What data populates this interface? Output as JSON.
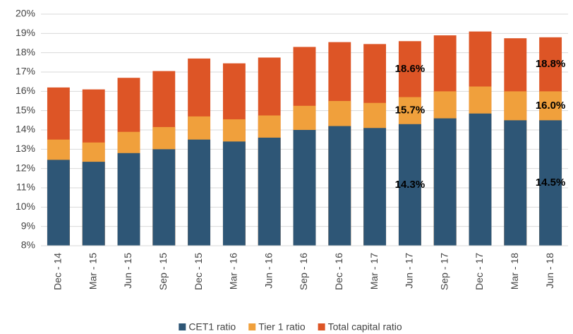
{
  "chart_data": {
    "type": "bar",
    "categories": [
      "Dec - 14",
      "Mar - 15",
      "Jun - 15",
      "Sep - 15",
      "Dec - 15",
      "Mar - 16",
      "Jun - 16",
      "Sep - 16",
      "Dec - 16",
      "Mar - 17",
      "Jun - 17",
      "Sep - 17",
      "Dec - 17",
      "Mar - 18",
      "Jun - 18"
    ],
    "series": [
      {
        "name": "CET1 ratio",
        "color": "#2e5676",
        "values": [
          12.45,
          12.35,
          12.8,
          13.0,
          13.5,
          13.4,
          13.6,
          14.0,
          14.2,
          14.1,
          14.3,
          14.6,
          14.85,
          14.5,
          14.5
        ],
        "value_labels": [
          null,
          null,
          null,
          null,
          null,
          null,
          null,
          null,
          null,
          null,
          "14.3%",
          null,
          null,
          null,
          "14.5%"
        ]
      },
      {
        "name": "Tier 1 ratio",
        "color": "#f0a03c",
        "values": [
          13.5,
          13.35,
          13.9,
          14.15,
          14.7,
          14.55,
          14.75,
          15.25,
          15.5,
          15.4,
          15.7,
          16.0,
          16.25,
          16.0,
          16.0
        ],
        "value_labels": [
          null,
          null,
          null,
          null,
          null,
          null,
          null,
          null,
          null,
          null,
          "15.7%",
          null,
          null,
          null,
          "16.0%"
        ]
      },
      {
        "name": "Total capital ratio",
        "color": "#dd5526",
        "values": [
          16.2,
          16.1,
          16.7,
          17.05,
          17.7,
          17.45,
          17.75,
          18.3,
          18.55,
          18.45,
          18.6,
          18.9,
          19.1,
          18.75,
          18.8
        ],
        "value_labels": [
          null,
          null,
          null,
          null,
          null,
          null,
          null,
          null,
          null,
          null,
          "18.6%",
          null,
          null,
          null,
          "18.8%"
        ]
      }
    ],
    "ylim": [
      8,
      20
    ],
    "yticks": [
      {
        "value": 8,
        "label": "8%"
      },
      {
        "value": 9,
        "label": "9%"
      },
      {
        "value": 10,
        "label": "10%"
      },
      {
        "value": 11,
        "label": "11%"
      },
      {
        "value": 12,
        "label": "12%"
      },
      {
        "value": 13,
        "label": "13%"
      },
      {
        "value": 14,
        "label": "14%"
      },
      {
        "value": 15,
        "label": "15%"
      },
      {
        "value": 16,
        "label": "16%"
      },
      {
        "value": 17,
        "label": "17%"
      },
      {
        "value": 18,
        "label": "18%"
      },
      {
        "value": 19,
        "label": "19%"
      },
      {
        "value": 20,
        "label": "20%"
      }
    ],
    "grid": true,
    "legend": "bottom"
  }
}
